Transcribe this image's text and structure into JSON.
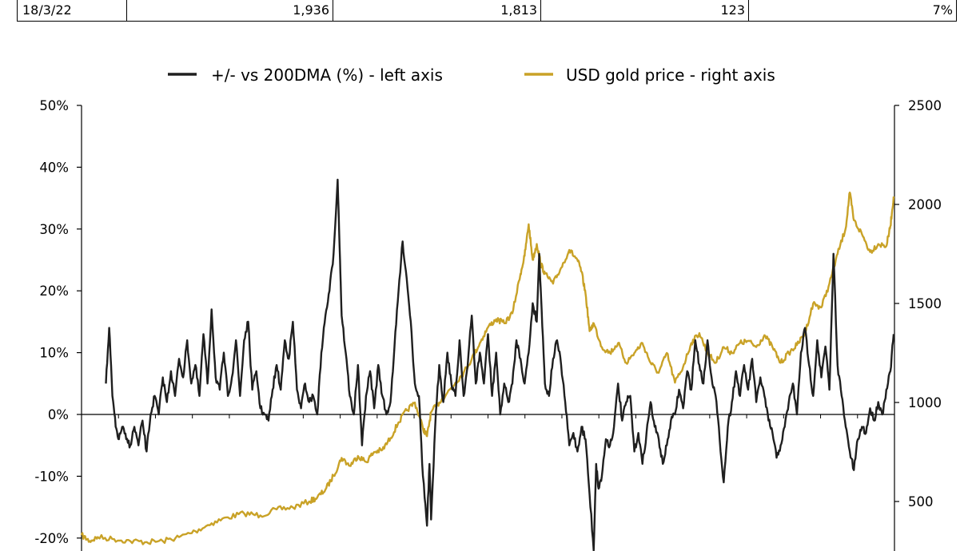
{
  "table": {
    "row": [
      "18/3/22",
      "1,936",
      "1,813",
      "123",
      "7%"
    ]
  },
  "chart_data": {
    "type": "line",
    "legend_position": "top-center",
    "grid": false,
    "colors": {
      "pct": "#1f1f1f",
      "gold": "#c9a227"
    },
    "legend": [
      {
        "name": "+/- vs 200DMA (%) - left axis",
        "color": "#1f1f1f"
      },
      {
        "name": "USD gold price - right axis",
        "color": "#c9a227"
      }
    ],
    "left_axis": {
      "min": -20,
      "max": 50,
      "ticks": [
        50,
        40,
        30,
        20,
        10,
        0,
        -10,
        -20
      ],
      "labels": [
        "50%",
        "40%",
        "30%",
        "20%",
        "10%",
        "0%",
        "-10%",
        "-20%"
      ]
    },
    "right_axis": {
      "min": 300,
      "max": 2500,
      "ticks": [
        2500,
        2000,
        1500,
        1000,
        500
      ],
      "labels": [
        "2500",
        "2000",
        "1500",
        "1000",
        "500"
      ]
    },
    "x": {
      "min": 0,
      "max": 1,
      "minor_ticks": 22
    },
    "series": [
      {
        "key": "pct",
        "name": "+/- vs 200DMA (%) - left axis",
        "points": [
          [
            0.03,
            5
          ],
          [
            0.034,
            14
          ],
          [
            0.038,
            3
          ],
          [
            0.042,
            -2
          ],
          [
            0.046,
            -4
          ],
          [
            0.05,
            -2
          ],
          [
            0.055,
            -4
          ],
          [
            0.06,
            -5
          ],
          [
            0.065,
            -2
          ],
          [
            0.07,
            -5
          ],
          [
            0.075,
            -1
          ],
          [
            0.08,
            -6
          ],
          [
            0.085,
            0
          ],
          [
            0.09,
            3
          ],
          [
            0.095,
            0
          ],
          [
            0.1,
            6
          ],
          [
            0.105,
            2
          ],
          [
            0.11,
            7
          ],
          [
            0.115,
            3
          ],
          [
            0.12,
            9
          ],
          [
            0.125,
            6
          ],
          [
            0.13,
            12
          ],
          [
            0.135,
            5
          ],
          [
            0.14,
            8
          ],
          [
            0.145,
            3
          ],
          [
            0.15,
            13
          ],
          [
            0.155,
            5
          ],
          [
            0.16,
            17
          ],
          [
            0.165,
            6
          ],
          [
            0.17,
            4
          ],
          [
            0.175,
            10
          ],
          [
            0.18,
            3
          ],
          [
            0.185,
            6
          ],
          [
            0.19,
            12
          ],
          [
            0.195,
            3
          ],
          [
            0.2,
            12
          ],
          [
            0.205,
            15
          ],
          [
            0.21,
            4
          ],
          [
            0.215,
            7
          ],
          [
            0.22,
            1
          ],
          [
            0.225,
            0
          ],
          [
            0.23,
            -1
          ],
          [
            0.235,
            4
          ],
          [
            0.24,
            8
          ],
          [
            0.245,
            4
          ],
          [
            0.25,
            12
          ],
          [
            0.255,
            9
          ],
          [
            0.26,
            15
          ],
          [
            0.265,
            4
          ],
          [
            0.27,
            1
          ],
          [
            0.275,
            5
          ],
          [
            0.28,
            2
          ],
          [
            0.285,
            3
          ],
          [
            0.29,
            0
          ],
          [
            0.295,
            10
          ],
          [
            0.3,
            16
          ],
          [
            0.305,
            20
          ],
          [
            0.31,
            26
          ],
          [
            0.315,
            38
          ],
          [
            0.318,
            25
          ],
          [
            0.32,
            16
          ],
          [
            0.325,
            10
          ],
          [
            0.33,
            3
          ],
          [
            0.335,
            0
          ],
          [
            0.34,
            8
          ],
          [
            0.345,
            -5
          ],
          [
            0.35,
            3
          ],
          [
            0.355,
            7
          ],
          [
            0.36,
            1
          ],
          [
            0.365,
            8
          ],
          [
            0.37,
            3
          ],
          [
            0.375,
            0
          ],
          [
            0.38,
            2
          ],
          [
            0.385,
            11
          ],
          [
            0.39,
            20
          ],
          [
            0.395,
            28
          ],
          [
            0.4,
            22
          ],
          [
            0.405,
            15
          ],
          [
            0.41,
            5
          ],
          [
            0.415,
            3
          ],
          [
            0.42,
            -10
          ],
          [
            0.425,
            -18
          ],
          [
            0.428,
            -8
          ],
          [
            0.43,
            -17
          ],
          [
            0.435,
            -2
          ],
          [
            0.44,
            8
          ],
          [
            0.445,
            2
          ],
          [
            0.45,
            10
          ],
          [
            0.455,
            5
          ],
          [
            0.46,
            3
          ],
          [
            0.465,
            12
          ],
          [
            0.47,
            3
          ],
          [
            0.475,
            8
          ],
          [
            0.48,
            16
          ],
          [
            0.485,
            5
          ],
          [
            0.49,
            10
          ],
          [
            0.495,
            5
          ],
          [
            0.5,
            13
          ],
          [
            0.505,
            3
          ],
          [
            0.51,
            10
          ],
          [
            0.515,
            0
          ],
          [
            0.52,
            5
          ],
          [
            0.525,
            2
          ],
          [
            0.53,
            5
          ],
          [
            0.535,
            12
          ],
          [
            0.54,
            9
          ],
          [
            0.545,
            5
          ],
          [
            0.55,
            10
          ],
          [
            0.555,
            18
          ],
          [
            0.56,
            15
          ],
          [
            0.563,
            26
          ],
          [
            0.566,
            17
          ],
          [
            0.57,
            5
          ],
          [
            0.575,
            3
          ],
          [
            0.58,
            9
          ],
          [
            0.585,
            12
          ],
          [
            0.59,
            8
          ],
          [
            0.595,
            2
          ],
          [
            0.6,
            -5
          ],
          [
            0.605,
            -3
          ],
          [
            0.61,
            -6
          ],
          [
            0.615,
            -2
          ],
          [
            0.62,
            -4
          ],
          [
            0.625,
            -13
          ],
          [
            0.63,
            -22
          ],
          [
            0.633,
            -8
          ],
          [
            0.636,
            -12
          ],
          [
            0.64,
            -10
          ],
          [
            0.645,
            -4
          ],
          [
            0.65,
            -5
          ],
          [
            0.655,
            -2
          ],
          [
            0.66,
            5
          ],
          [
            0.665,
            -1
          ],
          [
            0.67,
            2
          ],
          [
            0.675,
            3
          ],
          [
            0.68,
            -6
          ],
          [
            0.685,
            -3
          ],
          [
            0.69,
            -8
          ],
          [
            0.695,
            -3
          ],
          [
            0.7,
            2
          ],
          [
            0.705,
            -2
          ],
          [
            0.71,
            -4
          ],
          [
            0.715,
            -8
          ],
          [
            0.72,
            -5
          ],
          [
            0.725,
            -1
          ],
          [
            0.73,
            0
          ],
          [
            0.735,
            4
          ],
          [
            0.74,
            1
          ],
          [
            0.745,
            7
          ],
          [
            0.75,
            4
          ],
          [
            0.755,
            12
          ],
          [
            0.76,
            8
          ],
          [
            0.765,
            5
          ],
          [
            0.77,
            12
          ],
          [
            0.775,
            6
          ],
          [
            0.78,
            3
          ],
          [
            0.785,
            -4
          ],
          [
            0.79,
            -11
          ],
          [
            0.795,
            -2
          ],
          [
            0.8,
            2
          ],
          [
            0.805,
            7
          ],
          [
            0.81,
            3
          ],
          [
            0.815,
            8
          ],
          [
            0.82,
            4
          ],
          [
            0.825,
            9
          ],
          [
            0.83,
            2
          ],
          [
            0.835,
            6
          ],
          [
            0.84,
            3
          ],
          [
            0.845,
            -1
          ],
          [
            0.85,
            -3
          ],
          [
            0.855,
            -7
          ],
          [
            0.86,
            -5
          ],
          [
            0.865,
            -2
          ],
          [
            0.87,
            2
          ],
          [
            0.875,
            5
          ],
          [
            0.88,
            0
          ],
          [
            0.885,
            10
          ],
          [
            0.89,
            14
          ],
          [
            0.895,
            8
          ],
          [
            0.9,
            3
          ],
          [
            0.905,
            12
          ],
          [
            0.91,
            6
          ],
          [
            0.915,
            11
          ],
          [
            0.92,
            4
          ],
          [
            0.925,
            26
          ],
          [
            0.93,
            8
          ],
          [
            0.935,
            3
          ],
          [
            0.94,
            -2
          ],
          [
            0.945,
            -6
          ],
          [
            0.95,
            -9
          ],
          [
            0.955,
            -4
          ],
          [
            0.96,
            -2
          ],
          [
            0.965,
            -3
          ],
          [
            0.97,
            1
          ],
          [
            0.975,
            -1
          ],
          [
            0.98,
            2
          ],
          [
            0.985,
            0
          ],
          [
            0.99,
            4
          ],
          [
            0.995,
            7
          ],
          [
            0.999,
            13
          ]
        ]
      },
      {
        "key": "gold",
        "name": "USD gold price - right axis",
        "points": [
          [
            0.0,
            330
          ],
          [
            0.01,
            300
          ],
          [
            0.02,
            320
          ],
          [
            0.04,
            310
          ],
          [
            0.06,
            300
          ],
          [
            0.08,
            295
          ],
          [
            0.1,
            300
          ],
          [
            0.12,
            320
          ],
          [
            0.14,
            350
          ],
          [
            0.16,
            390
          ],
          [
            0.18,
            420
          ],
          [
            0.2,
            440
          ],
          [
            0.22,
            430
          ],
          [
            0.24,
            460
          ],
          [
            0.26,
            470
          ],
          [
            0.28,
            500
          ],
          [
            0.29,
            520
          ],
          [
            0.3,
            560
          ],
          [
            0.31,
            630
          ],
          [
            0.32,
            720
          ],
          [
            0.33,
            680
          ],
          [
            0.34,
            730
          ],
          [
            0.35,
            700
          ],
          [
            0.36,
            750
          ],
          [
            0.37,
            760
          ],
          [
            0.38,
            820
          ],
          [
            0.39,
            900
          ],
          [
            0.4,
            960
          ],
          [
            0.41,
            1000
          ],
          [
            0.42,
            870
          ],
          [
            0.425,
            830
          ],
          [
            0.43,
            950
          ],
          [
            0.44,
            1000
          ],
          [
            0.45,
            1050
          ],
          [
            0.46,
            1100
          ],
          [
            0.47,
            1150
          ],
          [
            0.48,
            1220
          ],
          [
            0.49,
            1300
          ],
          [
            0.5,
            1380
          ],
          [
            0.51,
            1420
          ],
          [
            0.52,
            1400
          ],
          [
            0.53,
            1450
          ],
          [
            0.54,
            1650
          ],
          [
            0.545,
            1740
          ],
          [
            0.55,
            1900
          ],
          [
            0.555,
            1720
          ],
          [
            0.56,
            1800
          ],
          [
            0.565,
            1700
          ],
          [
            0.57,
            1650
          ],
          [
            0.58,
            1600
          ],
          [
            0.59,
            1680
          ],
          [
            0.6,
            1770
          ],
          [
            0.61,
            1720
          ],
          [
            0.615,
            1660
          ],
          [
            0.62,
            1550
          ],
          [
            0.625,
            1360
          ],
          [
            0.63,
            1400
          ],
          [
            0.64,
            1280
          ],
          [
            0.65,
            1250
          ],
          [
            0.66,
            1300
          ],
          [
            0.67,
            1200
          ],
          [
            0.68,
            1250
          ],
          [
            0.69,
            1300
          ],
          [
            0.7,
            1200
          ],
          [
            0.71,
            1150
          ],
          [
            0.72,
            1250
          ],
          [
            0.73,
            1100
          ],
          [
            0.74,
            1180
          ],
          [
            0.75,
            1300
          ],
          [
            0.76,
            1350
          ],
          [
            0.77,
            1250
          ],
          [
            0.78,
            1200
          ],
          [
            0.79,
            1280
          ],
          [
            0.8,
            1250
          ],
          [
            0.81,
            1300
          ],
          [
            0.82,
            1310
          ],
          [
            0.83,
            1280
          ],
          [
            0.84,
            1340
          ],
          [
            0.85,
            1280
          ],
          [
            0.86,
            1200
          ],
          [
            0.87,
            1250
          ],
          [
            0.88,
            1290
          ],
          [
            0.89,
            1350
          ],
          [
            0.9,
            1500
          ],
          [
            0.91,
            1480
          ],
          [
            0.92,
            1600
          ],
          [
            0.93,
            1750
          ],
          [
            0.94,
            1880
          ],
          [
            0.945,
            2060
          ],
          [
            0.95,
            1920
          ],
          [
            0.96,
            1850
          ],
          [
            0.97,
            1760
          ],
          [
            0.98,
            1800
          ],
          [
            0.99,
            1790
          ],
          [
            0.995,
            1890
          ],
          [
            0.999,
            2040
          ]
        ]
      }
    ]
  }
}
